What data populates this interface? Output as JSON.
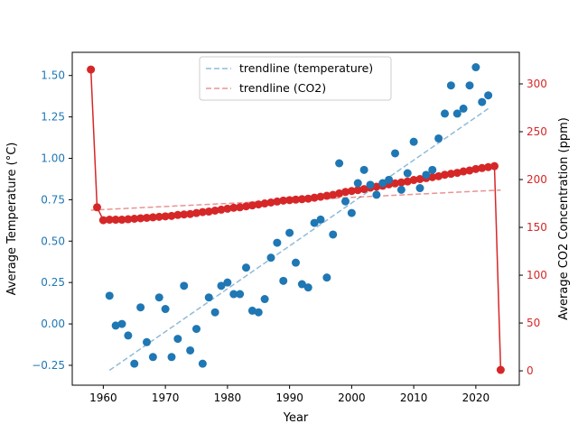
{
  "chart_data": {
    "type": "scatter",
    "title": "",
    "xlabel": "Year",
    "ylabel_left": "Average Temperature (°C)",
    "ylabel_right": "Average CO2 Concentration (ppm)",
    "xlim": [
      1955,
      2027
    ],
    "ylim_left": [
      -0.37,
      1.64
    ],
    "ylim_right": [
      -15,
      333
    ],
    "x_ticks": [
      1960,
      1970,
      1980,
      1990,
      2000,
      2010,
      2020
    ],
    "y_ticks_left": [
      -0.25,
      0.0,
      0.25,
      0.5,
      0.75,
      1.0,
      1.25,
      1.5
    ],
    "y_ticks_left_labels": [
      "−0.25",
      "0.00",
      "0.25",
      "0.50",
      "0.75",
      "1.00",
      "1.25",
      "1.50"
    ],
    "y_ticks_right": [
      0,
      50,
      100,
      150,
      200,
      250,
      300
    ],
    "grid": false,
    "legend_position": "top-center",
    "colors": {
      "temperature": "#1f77b4",
      "co2": "#d62728",
      "left_axis_ticks": "#1f77b4",
      "right_axis_ticks": "#d62728"
    },
    "series": [
      {
        "kind": "scatter",
        "axis": "left",
        "points": [
          [
            1961,
            0.17
          ],
          [
            1962,
            -0.01
          ],
          [
            1963,
            0.0
          ],
          [
            1964,
            -0.07
          ],
          [
            1965,
            -0.24
          ],
          [
            1966,
            0.1
          ],
          [
            1967,
            -0.11
          ],
          [
            1968,
            -0.2
          ],
          [
            1969,
            0.16
          ],
          [
            1970,
            0.09
          ],
          [
            1971,
            -0.2
          ],
          [
            1972,
            -0.09
          ],
          [
            1973,
            0.23
          ],
          [
            1974,
            -0.16
          ],
          [
            1975,
            -0.03
          ],
          [
            1976,
            -0.24
          ],
          [
            1977,
            0.16
          ],
          [
            1978,
            0.07
          ],
          [
            1979,
            0.23
          ],
          [
            1980,
            0.25
          ],
          [
            1981,
            0.18
          ],
          [
            1982,
            0.18
          ],
          [
            1983,
            0.34
          ],
          [
            1984,
            0.08
          ],
          [
            1985,
            0.07
          ],
          [
            1986,
            0.15
          ],
          [
            1987,
            0.4
          ],
          [
            1988,
            0.49
          ],
          [
            1989,
            0.26
          ],
          [
            1990,
            0.55
          ],
          [
            1991,
            0.37
          ],
          [
            1992,
            0.24
          ],
          [
            1993,
            0.22
          ],
          [
            1994,
            0.61
          ],
          [
            1995,
            0.63
          ],
          [
            1996,
            0.28
          ],
          [
            1997,
            0.54
          ],
          [
            1998,
            0.97
          ],
          [
            1999,
            0.74
          ],
          [
            2000,
            0.67
          ],
          [
            2001,
            0.85
          ],
          [
            2002,
            0.93
          ],
          [
            2003,
            0.84
          ],
          [
            2004,
            0.78
          ],
          [
            2005,
            0.85
          ],
          [
            2006,
            0.87
          ],
          [
            2007,
            1.03
          ],
          [
            2008,
            0.81
          ],
          [
            2009,
            0.91
          ],
          [
            2010,
            1.1
          ],
          [
            2011,
            0.82
          ],
          [
            2012,
            0.9
          ],
          [
            2013,
            0.93
          ],
          [
            2014,
            1.12
          ],
          [
            2015,
            1.27
          ],
          [
            2016,
            1.44
          ],
          [
            2017,
            1.27
          ],
          [
            2018,
            1.3
          ],
          [
            2019,
            1.44
          ],
          [
            2020,
            1.55
          ],
          [
            2021,
            1.34
          ],
          [
            2022,
            1.38
          ]
        ]
      },
      {
        "kind": "line-markers",
        "axis": "right",
        "points": [
          [
            1958,
            315
          ],
          [
            1959,
            171
          ],
          [
            1960,
            157.5
          ],
          [
            1961,
            158
          ],
          [
            1962,
            158
          ],
          [
            1963,
            158
          ],
          [
            1964,
            158.5
          ],
          [
            1965,
            159
          ],
          [
            1966,
            159.5
          ],
          [
            1967,
            160
          ],
          [
            1968,
            160.5
          ],
          [
            1969,
            161
          ],
          [
            1970,
            161.5
          ],
          [
            1971,
            162
          ],
          [
            1972,
            163
          ],
          [
            1973,
            163.5
          ],
          [
            1974,
            164
          ],
          [
            1975,
            165
          ],
          [
            1976,
            166
          ],
          [
            1977,
            166.5
          ],
          [
            1978,
            167.5
          ],
          [
            1979,
            168.5
          ],
          [
            1980,
            169.5
          ],
          [
            1981,
            170.5
          ],
          [
            1982,
            171
          ],
          [
            1983,
            172
          ],
          [
            1984,
            173
          ],
          [
            1985,
            174
          ],
          [
            1986,
            175
          ],
          [
            1987,
            176
          ],
          [
            1988,
            177
          ],
          [
            1989,
            178
          ],
          [
            1990,
            178.5
          ],
          [
            1991,
            179
          ],
          [
            1992,
            179.5
          ],
          [
            1993,
            180
          ],
          [
            1994,
            181
          ],
          [
            1995,
            182
          ],
          [
            1996,
            183
          ],
          [
            1997,
            184
          ],
          [
            1998,
            185.5
          ],
          [
            1999,
            187
          ],
          [
            2000,
            188
          ],
          [
            2001,
            189
          ],
          [
            2002,
            190
          ],
          [
            2003,
            191.5
          ],
          [
            2004,
            192.5
          ],
          [
            2005,
            193.5
          ],
          [
            2006,
            195
          ],
          [
            2007,
            196
          ],
          [
            2008,
            197
          ],
          [
            2009,
            198
          ],
          [
            2010,
            199.5
          ],
          [
            2011,
            200.5
          ],
          [
            2012,
            201.5
          ],
          [
            2013,
            202.5
          ],
          [
            2014,
            203.5
          ],
          [
            2015,
            205
          ],
          [
            2016,
            206
          ],
          [
            2017,
            207
          ],
          [
            2018,
            208.5
          ],
          [
            2019,
            209.5
          ],
          [
            2020,
            211
          ],
          [
            2021,
            212
          ],
          [
            2022,
            213
          ],
          [
            2023,
            214
          ],
          [
            2024,
            1
          ]
        ]
      },
      {
        "kind": "trendline",
        "name": "trendline (temperature)",
        "axis": "left",
        "points": [
          [
            1961,
            -0.28
          ],
          [
            2022,
            1.3
          ]
        ]
      },
      {
        "kind": "trendline",
        "name": "trendline (CO2)",
        "axis": "right",
        "points": [
          [
            1958,
            168
          ],
          [
            2024,
            189
          ]
        ]
      }
    ]
  }
}
